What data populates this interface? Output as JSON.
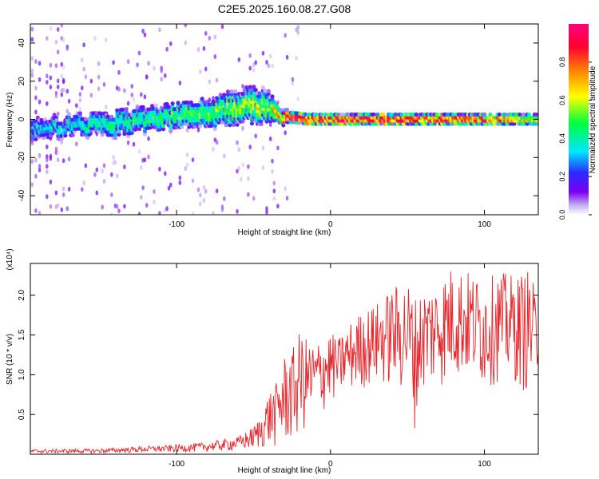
{
  "title": "C2E5.2025.160.08.27.G08",
  "chart_data": [
    {
      "type": "heatmap",
      "xlabel": "Height of straight line (km)",
      "ylabel": "Frequency (Hz)",
      "xlim": [
        -195,
        135
      ],
      "ylim": [
        -50,
        50
      ],
      "x_ticks": [
        -100,
        0,
        100
      ],
      "y_ticks": [
        -40,
        -20,
        0,
        20,
        40
      ],
      "colorbar": {
        "label": "Normalized spectral amplitude",
        "range": [
          0,
          1
        ],
        "ticks": [
          0.0,
          0.2,
          0.4,
          0.6,
          0.8
        ],
        "colors": [
          "#ffffff",
          "#c5aff5",
          "#7a00f0",
          "#2a2aff",
          "#00e6ff",
          "#00ff40",
          "#ffff00",
          "#ff9000",
          "#ff0030",
          "#ff007a"
        ]
      },
      "ridge": {
        "height_km": [
          -195,
          -180,
          -160,
          -140,
          -120,
          -100,
          -80,
          -60,
          -50,
          -40,
          -33,
          -25,
          -15,
          0,
          20,
          50,
          100,
          135
        ],
        "center_hz": [
          -6,
          -4,
          -3,
          -2,
          0,
          2,
          4,
          6,
          8,
          6,
          2,
          1,
          0,
          0,
          0,
          0,
          0,
          0
        ],
        "halfwidth_hz": [
          5,
          5,
          5,
          6,
          6,
          6,
          7,
          8,
          9,
          8,
          4,
          3,
          3,
          3,
          3,
          3,
          3,
          3
        ],
        "peak_amplitude": [
          0.35,
          0.35,
          0.4,
          0.45,
          0.45,
          0.5,
          0.5,
          0.55,
          0.6,
          0.55,
          0.75,
          0.95,
          0.9,
          0.85,
          0.9,
          0.9,
          0.85,
          0.6
        ]
      }
    },
    {
      "type": "line",
      "xlabel": "Height of straight line (km)",
      "ylabel": "SNR (10 * v/v)",
      "y_multiplier": "(x10⁴)",
      "xlim": [
        -195,
        135
      ],
      "ylim": [
        0,
        2.4
      ],
      "x_ticks": [
        -100,
        0,
        100
      ],
      "y_ticks": [
        0.5,
        1.0,
        1.5,
        2.0
      ],
      "color": "#e8252a",
      "series": [
        {
          "envelope_height_km": [
            -195,
            -150,
            -120,
            -100,
            -80,
            -60,
            -50,
            -45,
            -40,
            -35,
            -30,
            -25,
            -20,
            -15,
            -10,
            -5,
            0,
            5,
            10,
            20,
            30,
            40,
            50,
            55,
            60,
            70,
            80,
            90,
            100,
            110,
            120,
            130,
            135
          ],
          "envelope_max": [
            0.06,
            0.07,
            0.1,
            0.12,
            0.15,
            0.22,
            0.35,
            0.5,
            0.8,
            0.9,
            1.25,
            1.3,
            1.55,
            1.45,
            1.4,
            1.5,
            1.55,
            1.45,
            1.6,
            1.8,
            1.9,
            2.1,
            2.2,
            2.0,
            2.1,
            2.2,
            2.4,
            2.3,
            2.2,
            2.3,
            2.25,
            2.35,
            1.8
          ],
          "envelope_min": [
            0.01,
            0.01,
            0.02,
            0.02,
            0.03,
            0.04,
            0.05,
            0.06,
            0.06,
            0.06,
            0.08,
            0.1,
            0.2,
            0.3,
            0.4,
            0.5,
            0.6,
            0.7,
            0.75,
            0.8,
            0.85,
            0.8,
            0.7,
            0.3,
            0.75,
            0.8,
            0.9,
            0.9,
            0.8,
            0.9,
            0.85,
            0.7,
            1.0
          ]
        }
      ]
    }
  ]
}
